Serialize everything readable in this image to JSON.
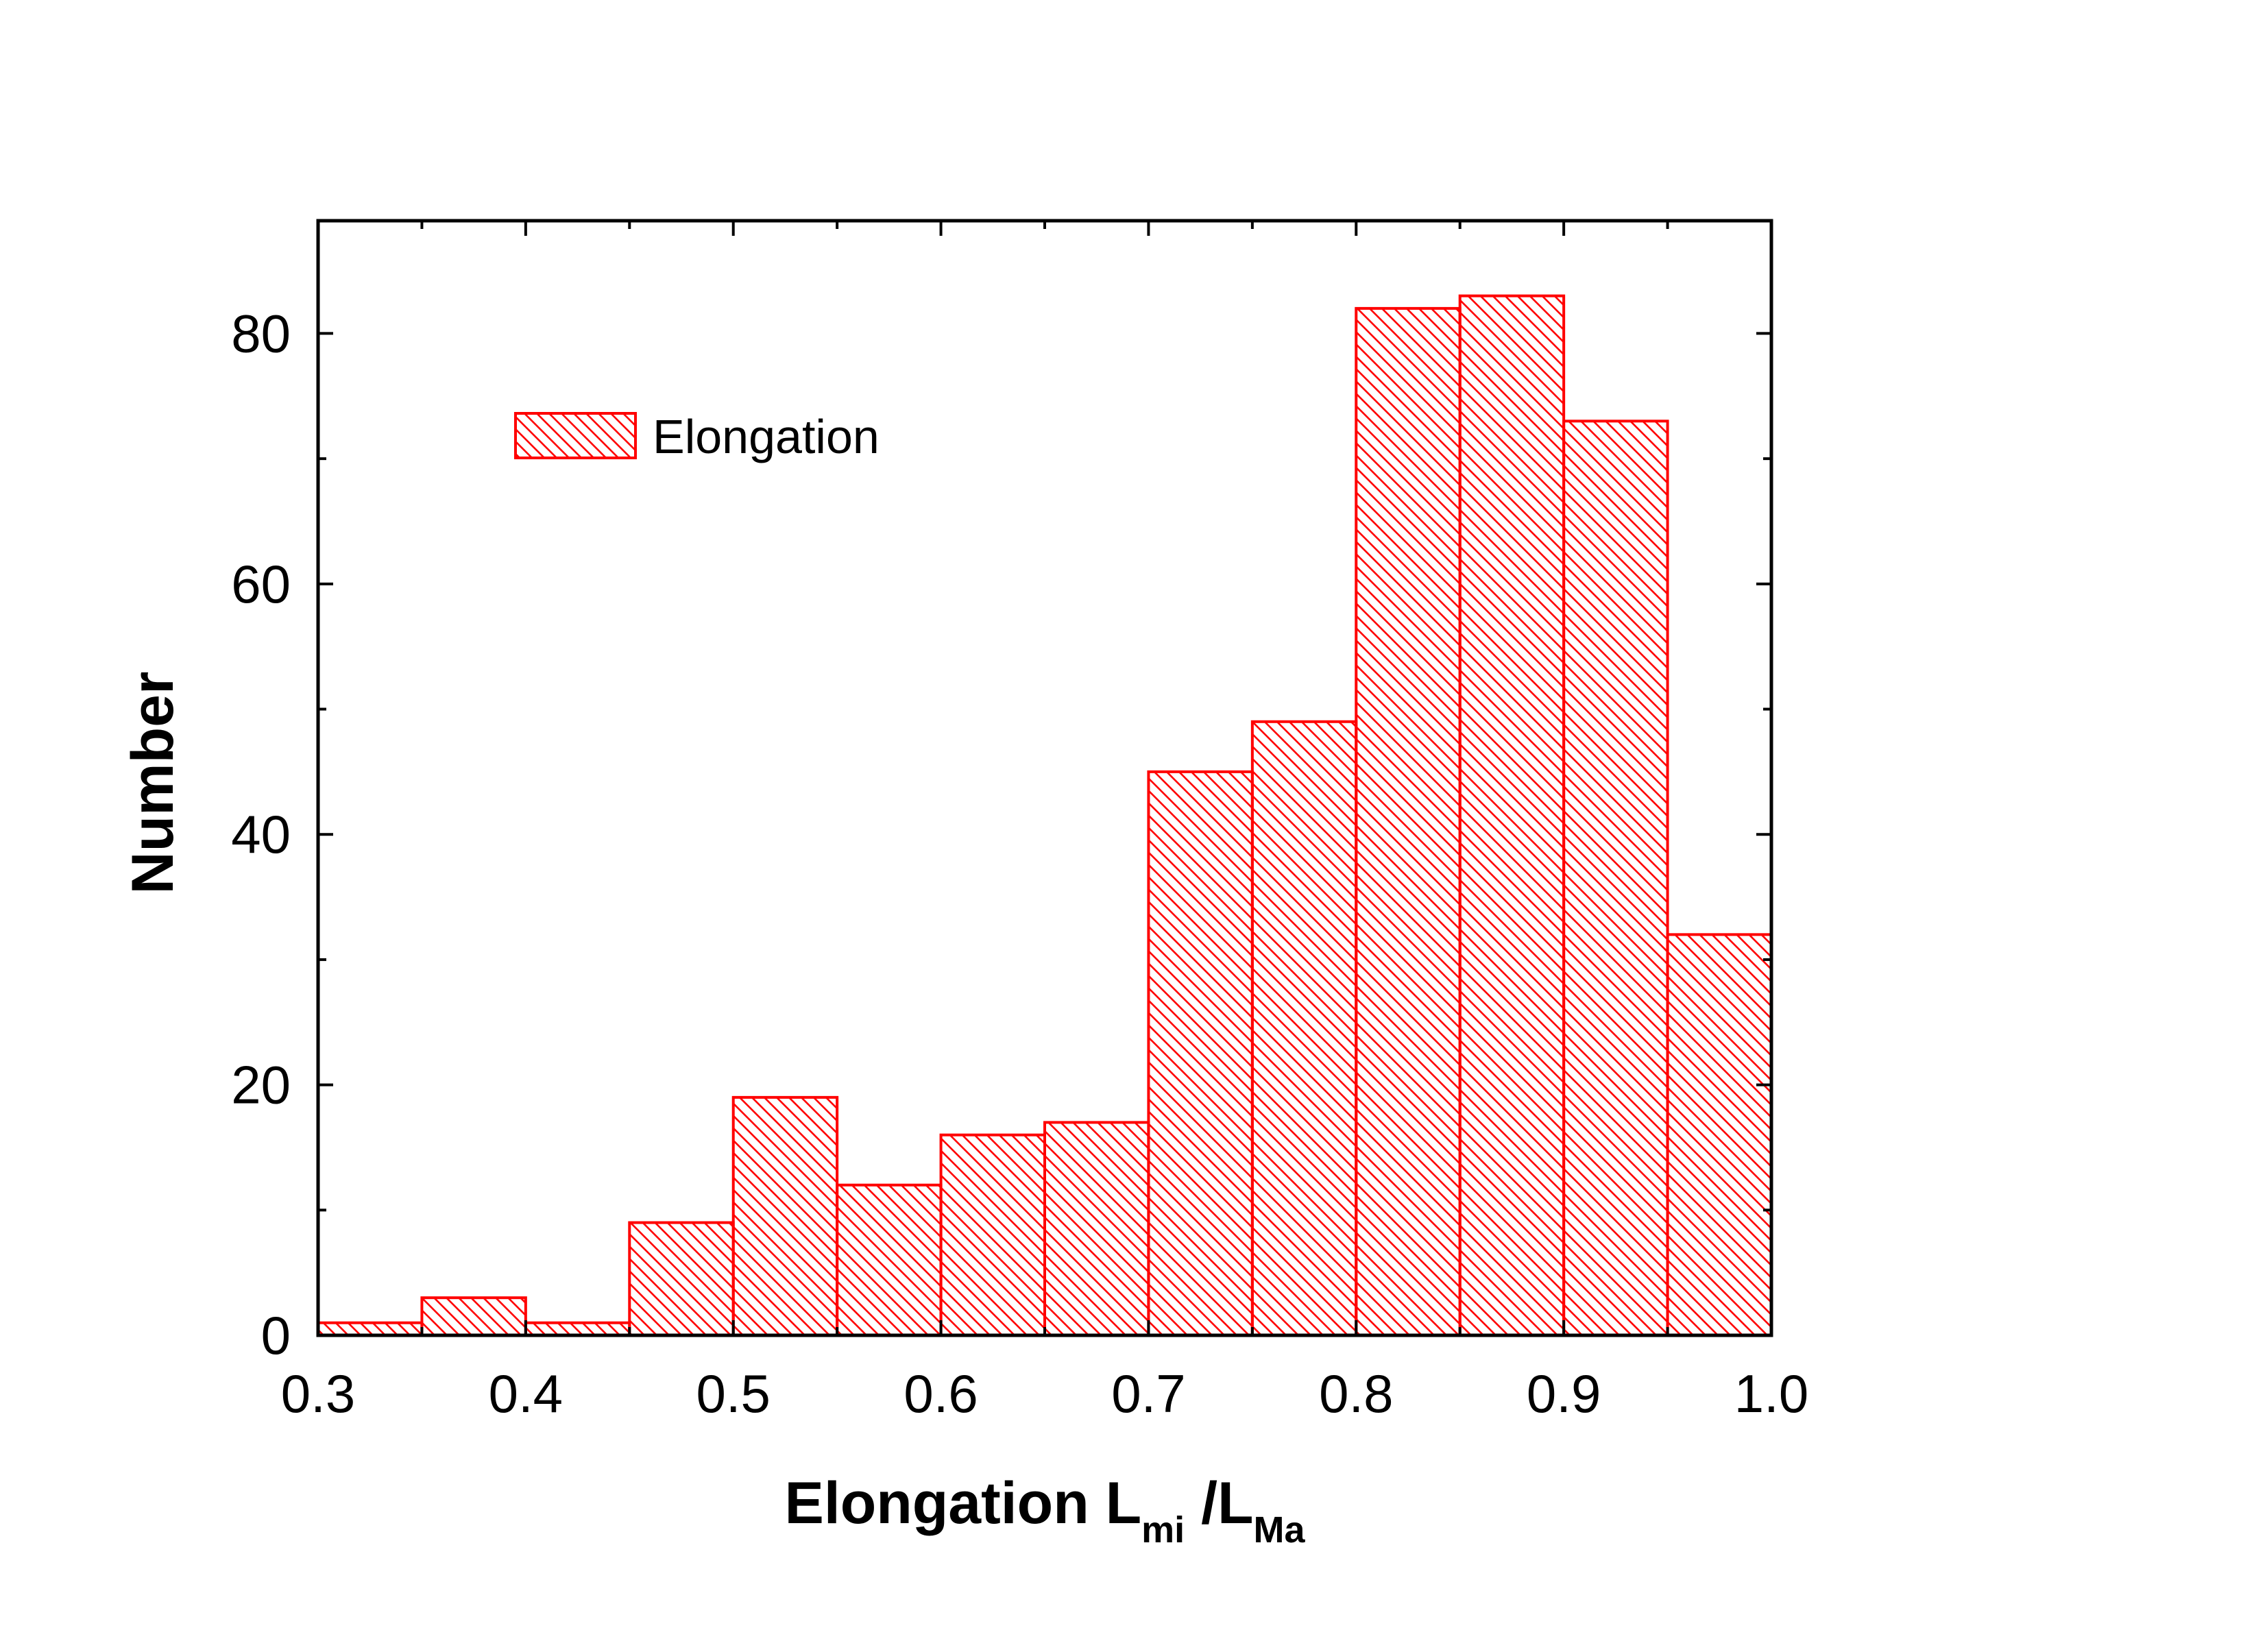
{
  "chart_data": {
    "type": "bar",
    "x": [
      0.3,
      0.35,
      0.4,
      0.45,
      0.5,
      0.55,
      0.6,
      0.65,
      0.7,
      0.75,
      0.8,
      0.85,
      0.9,
      0.95
    ],
    "bin_width": 0.05,
    "series": [
      {
        "name": "Elongation",
        "values": [
          1,
          3,
          1,
          9,
          19,
          12,
          16,
          17,
          45,
          49,
          82,
          83,
          73,
          32
        ]
      }
    ],
    "xlabel": {
      "main": "Elongation  L",
      "sub1": "mi",
      "mid": " /L",
      "sub2": "Ma"
    },
    "ylabel": "Number",
    "xlim": [
      0.3,
      1.0
    ],
    "ylim": [
      0,
      89
    ],
    "xticks": [
      "0.3",
      "0.4",
      "0.5",
      "0.6",
      "0.7",
      "0.8",
      "0.9",
      "1.0"
    ],
    "yticks": [
      "0",
      "20",
      "40",
      "60",
      "80"
    ],
    "grid": false,
    "legend": "top-left",
    "color": "#ff0000",
    "fill_pattern": "diagonal-hatch"
  }
}
